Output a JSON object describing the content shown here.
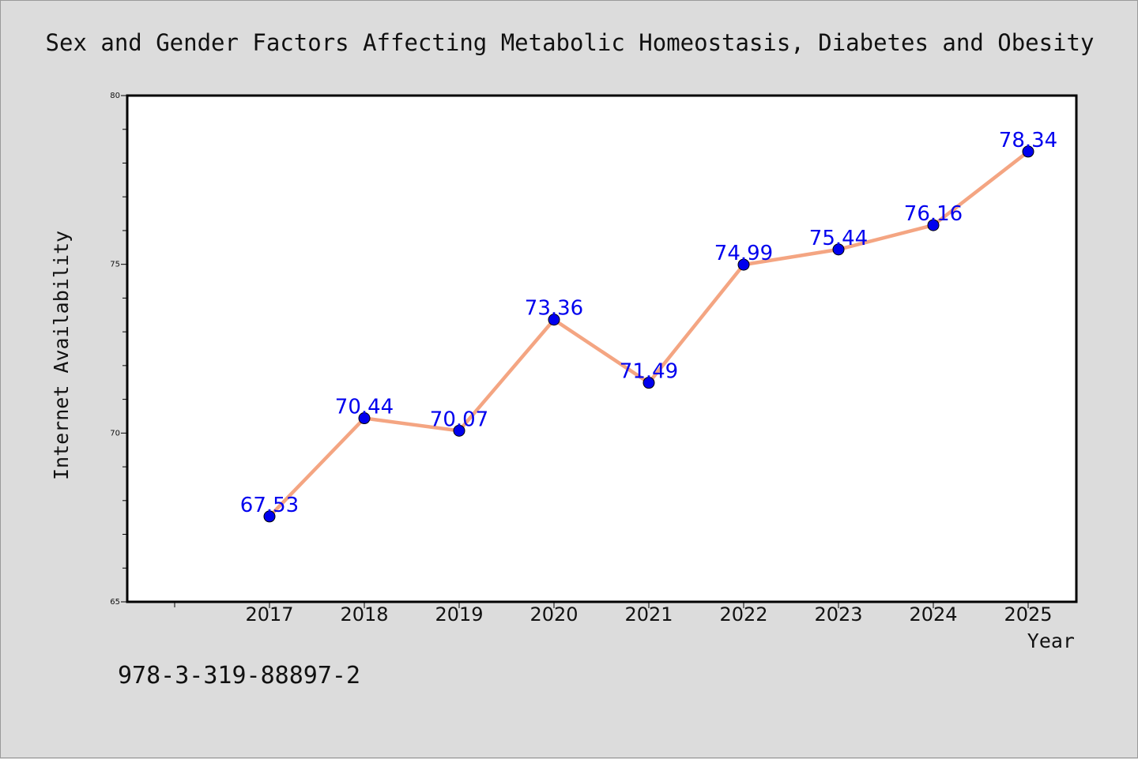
{
  "chart_data": {
    "type": "line",
    "title": "Sex and Gender Factors Affecting Metabolic Homeostasis, Diabetes and Obesity",
    "xlabel": "Year",
    "ylabel": "Internet Availability",
    "categories": [
      "2017",
      "2018",
      "2019",
      "2020",
      "2021",
      "2022",
      "2023",
      "2024",
      "2025"
    ],
    "values": [
      67.53,
      70.44,
      70.07,
      73.36,
      71.49,
      74.99,
      75.44,
      76.16,
      78.34
    ],
    "data_labels": [
      "67.53",
      "70.44",
      "70.07",
      "73.36",
      "71.49",
      "74.99",
      "75.44",
      "76.16",
      "78.34"
    ],
    "ylim": [
      65,
      80
    ],
    "yticks": [
      "65",
      "70",
      "75",
      "80"
    ],
    "grid": false,
    "line_color": "#f4a582",
    "marker_color": "#0000ee",
    "label_color": "#0000ee"
  },
  "footer": {
    "isbn": "978-3-319-88897-2"
  }
}
